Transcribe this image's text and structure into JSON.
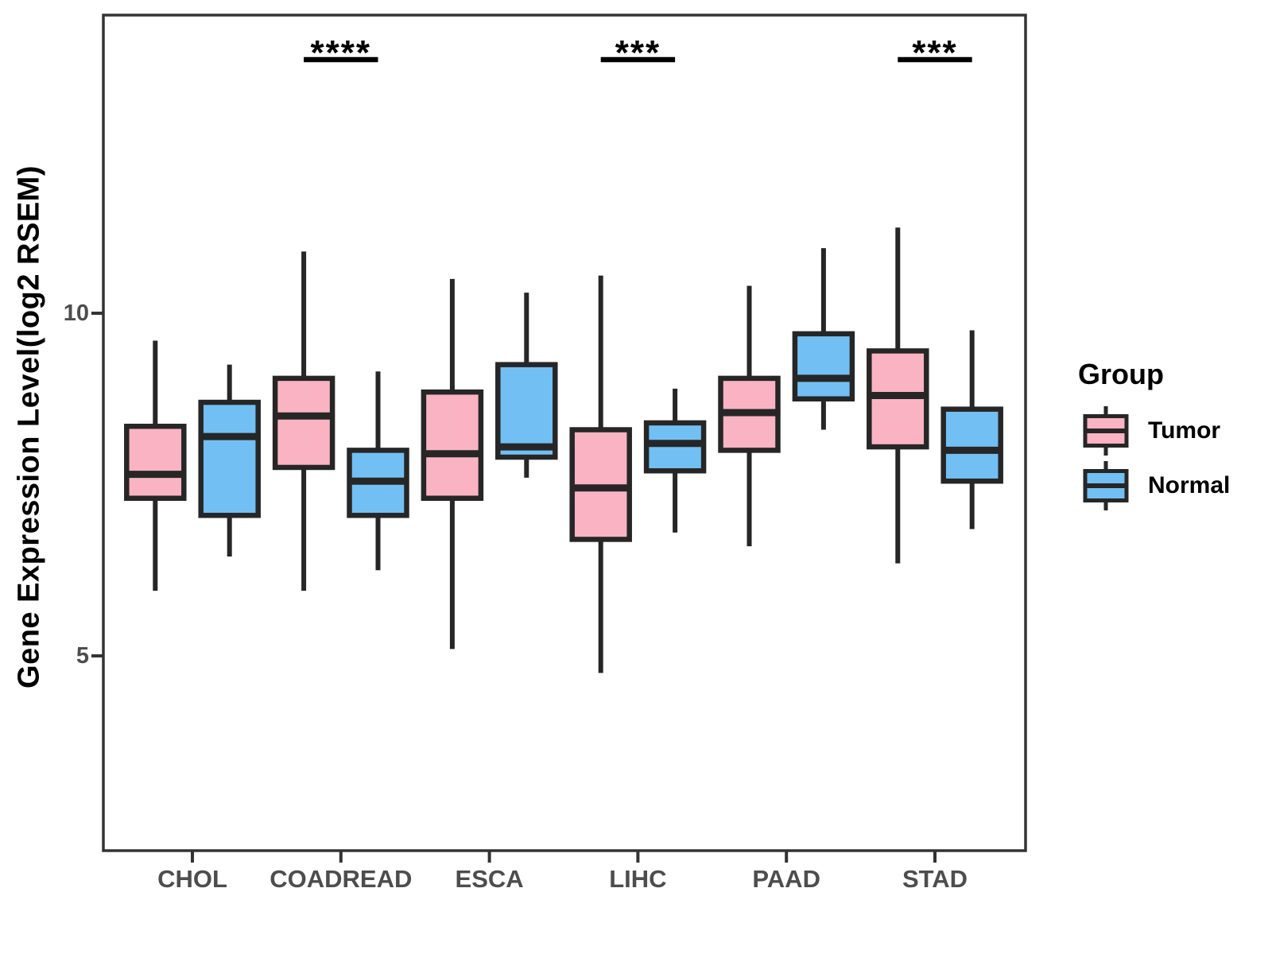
{
  "figure": {
    "background": "#FFFFFF",
    "y_axis": {
      "title": "Gene Expression Level(log2 RSEM)",
      "tick_labels": [
        "10",
        "5"
      ],
      "tick_values": [
        10,
        5
      ]
    },
    "x_axis": {
      "tick_labels": [
        "CHOL",
        "COADREAD",
        "ESCA",
        "LIHC",
        "PAAD",
        "STAD"
      ]
    },
    "legend": {
      "title": "Group",
      "items": [
        {
          "label": "Tumor",
          "color": "#F9B3C2"
        },
        {
          "label": "Normal",
          "color": "#72BFF3"
        }
      ]
    },
    "colors": {
      "tumor_fill": "#F9B3C2",
      "normal_fill": "#72BFF3",
      "box_stroke": "#262626",
      "panel_border": "#333333",
      "tick_label": "#4D4D4D",
      "annotation": "#000000"
    }
  },
  "chart_data": {
    "type": "boxplot",
    "title": "",
    "xlabel": "",
    "ylabel": "Gene Expression Level(log2 RSEM)",
    "categories": [
      "CHOL",
      "COADREAD",
      "ESCA",
      "LIHC",
      "PAAD",
      "STAD"
    ],
    "groups": [
      "Tumor",
      "Normal"
    ],
    "y_ticks": [
      5,
      10
    ],
    "ylim": [
      2.2,
      14.3
    ],
    "grid": false,
    "legend_position": "right",
    "series": [
      {
        "name": "Tumor",
        "fill": "#F9B3C2",
        "boxes": [
          {
            "category": "CHOL",
            "min": 5.95,
            "q1": 7.3,
            "median": 7.65,
            "q3": 8.35,
            "max": 9.6
          },
          {
            "category": "COADREAD",
            "min": 5.95,
            "q1": 7.75,
            "median": 8.5,
            "q3": 9.05,
            "max": 10.9
          },
          {
            "category": "ESCA",
            "min": 5.1,
            "q1": 7.3,
            "median": 7.95,
            "q3": 8.85,
            "max": 10.5
          },
          {
            "category": "LIHC",
            "min": 4.75,
            "q1": 6.7,
            "median": 7.45,
            "q3": 8.3,
            "max": 10.55
          },
          {
            "category": "PAAD",
            "min": 6.6,
            "q1": 8.0,
            "median": 8.55,
            "q3": 9.05,
            "max": 10.4
          },
          {
            "category": "STAD",
            "min": 6.35,
            "q1": 8.05,
            "median": 8.8,
            "q3": 9.45,
            "max": 11.25
          }
        ]
      },
      {
        "name": "Normal",
        "fill": "#72BFF3",
        "boxes": [
          {
            "category": "CHOL",
            "min": 6.45,
            "q1": 7.05,
            "median": 8.2,
            "q3": 8.7,
            "max": 9.25
          },
          {
            "category": "COADREAD",
            "min": 6.25,
            "q1": 7.05,
            "median": 7.55,
            "q3": 8.0,
            "max": 9.15
          },
          {
            "category": "ESCA",
            "min": 7.6,
            "q1": 7.9,
            "median": 8.05,
            "q3": 9.25,
            "max": 10.3
          },
          {
            "category": "LIHC",
            "min": 6.8,
            "q1": 7.7,
            "median": 8.1,
            "q3": 8.4,
            "max": 8.9
          },
          {
            "category": "PAAD",
            "min": 8.3,
            "q1": 8.75,
            "median": 9.05,
            "q3": 9.7,
            "max": 10.95
          },
          {
            "category": "STAD",
            "min": 6.85,
            "q1": 7.55,
            "median": 8.0,
            "q3": 8.6,
            "max": 9.75
          }
        ]
      }
    ],
    "significance": [
      {
        "category": "COADREAD",
        "label": "****"
      },
      {
        "category": "LIHC",
        "label": "***"
      },
      {
        "category": "STAD",
        "label": "***"
      }
    ]
  }
}
